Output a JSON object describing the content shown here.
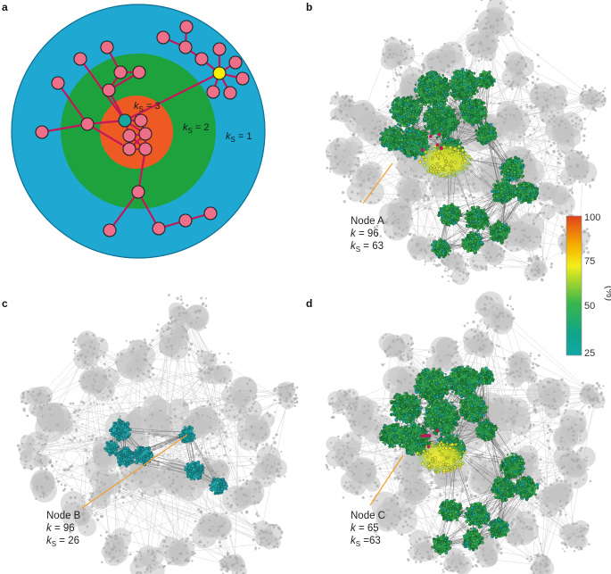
{
  "panels": {
    "a": {
      "label": "a",
      "shells": [
        {
          "k": "k",
          "s": "S",
          "v": " = 3"
        },
        {
          "k": "k",
          "s": "S",
          "v": " = 2"
        },
        {
          "k": "k",
          "s": "S",
          "v": " = 1"
        }
      ],
      "colors": {
        "outer": "#1fa8d2",
        "middle": "#1ea23d",
        "inner": "#ee5a24",
        "node": "#ee6f8a",
        "edge": "#c2185b",
        "teal": "#1aa6a0",
        "yellow": "#ffee00"
      }
    },
    "b": {
      "label": "b",
      "node": {
        "name": "Node A",
        "k": " = 96",
        "ks": " = 63"
      }
    },
    "c": {
      "label": "c",
      "node": {
        "name": "Node B",
        "k": " = 96",
        "ks": " = 26"
      }
    },
    "d": {
      "label": "d",
      "node": {
        "name": "Node C",
        "k": " = 65",
        "ks": " =63"
      }
    }
  },
  "colorbar": {
    "unit": "(%)",
    "ticks": [
      "100",
      "75",
      "50",
      "25"
    ],
    "colors": [
      "#e0421a",
      "#f6b400",
      "#f2ee1c",
      "#3cb64a",
      "#10a48a",
      "#12a6a6"
    ]
  },
  "symbols": {
    "k": "k",
    "s": "S"
  }
}
